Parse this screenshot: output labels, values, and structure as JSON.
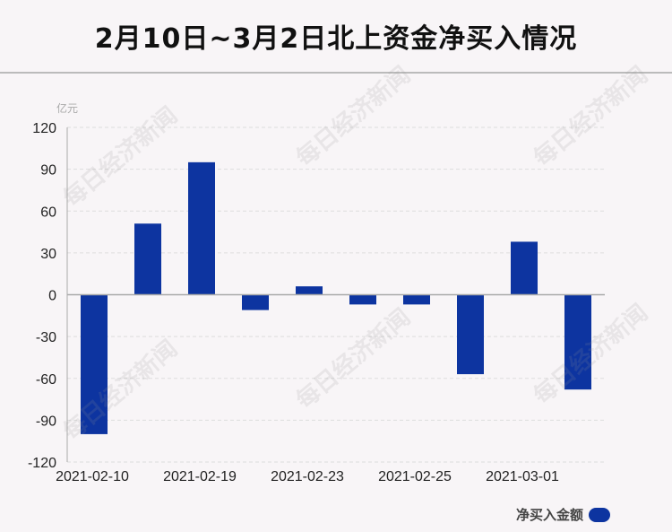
{
  "title": "2月10日~3月2日北上资金净买入情况",
  "watermark": "每日经济新闻",
  "colors": {
    "bar": "#0d34a0",
    "grid": "#dddddd",
    "axis": "#aaaaaa"
  },
  "legend": {
    "label": "净买入金额"
  },
  "chart_data": {
    "type": "bar",
    "ylabel": "亿元",
    "ylim": [
      -120,
      120
    ],
    "yticks": [
      120,
      90,
      60,
      30,
      0,
      -30,
      -60,
      -90,
      -120
    ],
    "x_tick_labels": [
      "2021-02-10",
      "2021-02-19",
      "2021-02-23",
      "2021-02-25",
      "2021-03-01"
    ],
    "grid": true,
    "legend_position": "bottom-right",
    "series": [
      {
        "name": "净买入金额",
        "values": [
          -100,
          51,
          95,
          -11,
          6,
          -7,
          -7,
          -57,
          38,
          -68
        ]
      }
    ]
  }
}
